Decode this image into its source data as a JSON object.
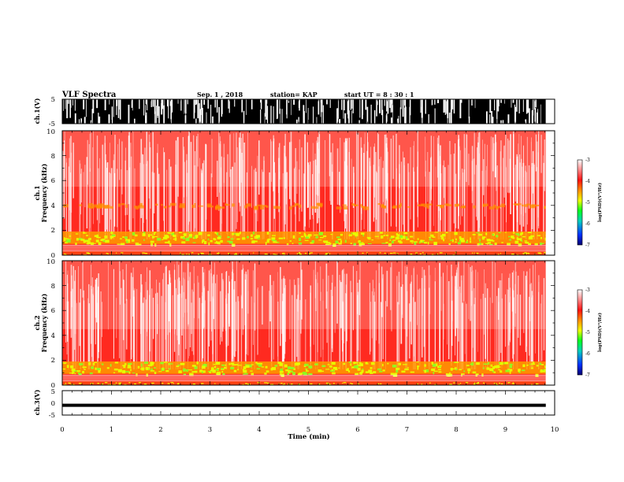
{
  "header": {
    "title": "VLF Spectra",
    "date": "Sep. 1  , 2018",
    "station": "station= KAP",
    "start": "start  UT  =   8  : 30 : 1"
  },
  "chart_data": [
    {
      "type": "line",
      "name": "ch1-waveform",
      "ylabel": "ch.1(V)",
      "ylim": [
        -5,
        5
      ],
      "yticks": [
        "5",
        "-5"
      ],
      "description_values": "dense waveform saturating between -5 and 5 V"
    },
    {
      "type": "heatmap",
      "name": "ch1-spectrogram",
      "ylabel_line1": "ch.1",
      "ylabel_line2": "Frequency  (kHz)",
      "ylim": [
        0,
        10
      ],
      "yticks": [
        "0",
        "2",
        "4",
        "6",
        "8",
        "10"
      ],
      "colorbar": {
        "ticks": [
          "-3",
          "-4",
          "-5",
          "-6",
          "-7"
        ],
        "label": "log(PSD)(V²/Hz)",
        "range": [
          -7,
          -3
        ]
      }
    },
    {
      "type": "heatmap",
      "name": "ch2-spectrogram",
      "ylabel_line1": "ch.2",
      "ylabel_line2": "Frequency  (kHz)",
      "ylim": [
        0,
        10
      ],
      "yticks": [
        "0",
        "2",
        "4",
        "6",
        "8",
        "10"
      ],
      "colorbar": {
        "ticks": [
          "-3",
          "-4",
          "-5",
          "-6",
          "-7"
        ],
        "label": "log(PSD)(V²/Hz)",
        "range": [
          -7,
          -3
        ]
      }
    },
    {
      "type": "line",
      "name": "ch3-waveform",
      "ylabel": "ch.3(V)",
      "ylim": [
        -5,
        5
      ],
      "yticks": [
        "5",
        "0",
        "-5"
      ],
      "level": -1
    }
  ],
  "xaxis": {
    "label": "Time  (min)",
    "range": [
      0,
      10
    ],
    "ticks": [
      "0",
      "1",
      "2",
      "3",
      "4",
      "5",
      "6",
      "7",
      "8",
      "9",
      "10"
    ],
    "data_end": 9.82
  },
  "colors": {
    "spec_bg": "#ff2a20",
    "colormap": [
      "#000070",
      "#0030ff",
      "#00d0c0",
      "#00ff20",
      "#f0ff00",
      "#ff9000",
      "#ff1010",
      "#ffffff"
    ]
  }
}
